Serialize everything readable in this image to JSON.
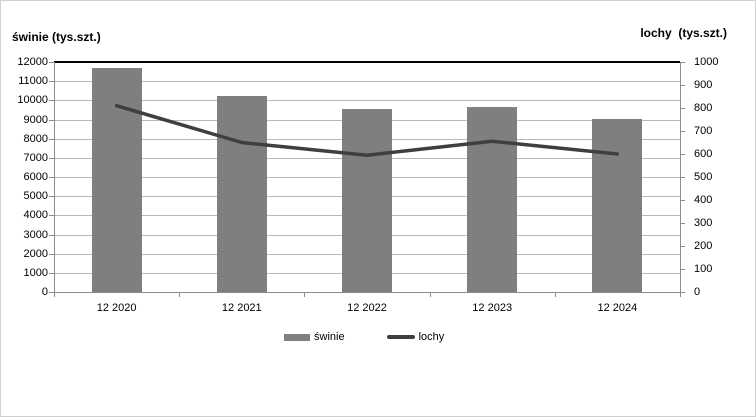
{
  "chart_data": {
    "type": "combo_bar_line",
    "categories": [
      "12 2020",
      "12 2021",
      "12 2022",
      "12 2023",
      "12 2024"
    ],
    "series": [
      {
        "name": "świnie",
        "type": "bar",
        "axis": "left",
        "values": [
          11700,
          10250,
          9560,
          9660,
          9050
        ]
      },
      {
        "name": "lochy",
        "type": "line",
        "axis": "right",
        "values": [
          810,
          650,
          595,
          655,
          600
        ]
      }
    ],
    "left_axis": {
      "title": "świnie (tys.szt.)",
      "min": 0,
      "max": 12000,
      "step": 1000,
      "tick_labels": [
        "12000",
        "11000",
        "10000",
        "9000",
        "8000",
        "7000",
        "6000",
        "5000",
        "4000",
        "3000",
        "2000",
        "1000",
        "0"
      ]
    },
    "right_axis": {
      "title": "lochy  (tys.szt.)",
      "min": 0,
      "max": 1000,
      "step": 100,
      "tick_labels": [
        "1000",
        "900",
        "800",
        "700",
        "600",
        "500",
        "400",
        "300",
        "200",
        "100",
        "0"
      ]
    },
    "legend": {
      "items": [
        "świnie",
        "lochy"
      ],
      "position": "bottom-center"
    },
    "grid": true
  },
  "colors": {
    "bar": "#7f7f7f",
    "line": "#3f3f3f",
    "gridline": "#b8b8b8",
    "axis": "#8c8c8c",
    "text": "#000000",
    "plot_top_border": "#000000",
    "background": "#ffffff",
    "frame_border": "#d0d0d0"
  }
}
